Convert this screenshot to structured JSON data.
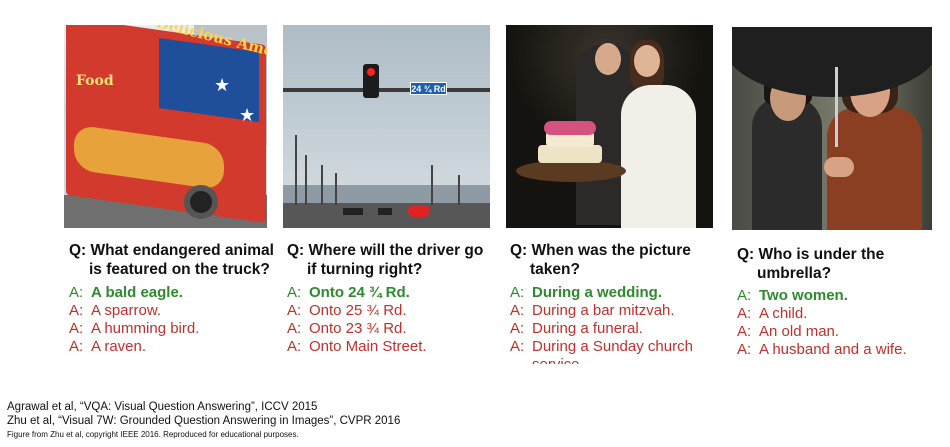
{
  "panels": [
    {
      "question_line1": "Q:  What endangered animal",
      "question_line2": "is featured on the truck?",
      "answers": [
        {
          "prefix": "A:",
          "text": "A bald eagle."
        },
        {
          "prefix": "A:",
          "text": "A sparrow."
        },
        {
          "prefix": "A:",
          "text": "A humming bird."
        },
        {
          "prefix": "A:",
          "text": "A raven."
        }
      ],
      "photo_text": [
        "Delicious American",
        "Food"
      ]
    },
    {
      "question_line1": "Q:  Where will the driver go",
      "question_line2": "if turning right?",
      "answers": [
        {
          "prefix": "A:",
          "text": "Onto 24 ¾ Rd."
        },
        {
          "prefix": "A:",
          "text": "Onto 25 ¾ Rd."
        },
        {
          "prefix": "A:",
          "text": "Onto 23 ¾ Rd."
        },
        {
          "prefix": "A:",
          "text": "Onto Main Street."
        }
      ],
      "photo_text": [
        "24 ¾ Rd"
      ]
    },
    {
      "question_line1": "Q:  When was the picture",
      "question_line2": "taken?",
      "answers": [
        {
          "prefix": "A:",
          "text": "During a wedding."
        },
        {
          "prefix": "A:",
          "text": "During a bar mitzvah."
        },
        {
          "prefix": "A:",
          "text": "During a funeral."
        },
        {
          "prefix": "A:",
          "text": "During a Sunday church"
        },
        {
          "prefix": "",
          "text": "service"
        }
      ]
    },
    {
      "question_line1": "Q:  Who is under the",
      "question_line2": "umbrella?",
      "answers": [
        {
          "prefix": "A:",
          "text": "Two women."
        },
        {
          "prefix": "A:",
          "text": "A child."
        },
        {
          "prefix": "A:",
          "text": "An old man."
        },
        {
          "prefix": "A:",
          "text": "A husband and a wife."
        }
      ]
    }
  ],
  "references": {
    "ref1": "Agrawal et al, “VQA: Visual Question Answering”, ICCV 2015",
    "ref2": "Zhu et al, “Visual 7W: Grounded Question Answering in Images”, CVPR 2016",
    "credit": "Figure from Zhu et al, copyright IEEE 2016. Reproduced for educational purposes."
  },
  "colors": {
    "correct": "#2e8b2e",
    "wrong": "#c0302a"
  }
}
